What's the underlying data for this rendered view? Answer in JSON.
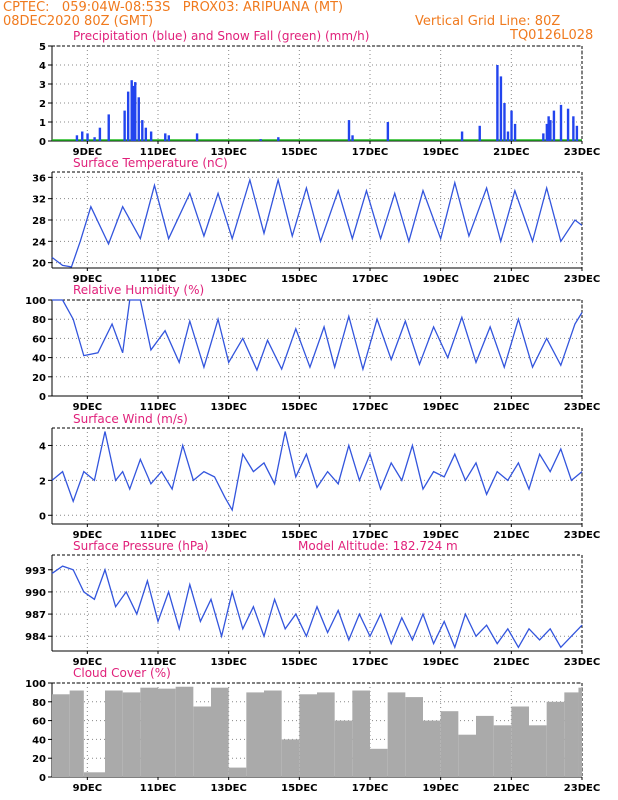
{
  "header": {
    "line1_left": "CPTEC:   059:04W-08:53S   PROX03: ARIPUANA (MT)",
    "line2_left": "08DEC2020 80Z (GMT)",
    "line2_right": "Vertical Grid Line: 80Z",
    "line3_right": "TQ0126L028"
  },
  "x_tick_labels": [
    "9DEC",
    "11DEC",
    "13DEC",
    "15DEC",
    "17DEC",
    "19DEC",
    "21DEC",
    "23DEC"
  ],
  "colors": {
    "series": "#3355dd",
    "bars": "#2244ee",
    "snow": "#22bb22",
    "cloud": "#aaaaaa",
    "title": "#e0207a",
    "header": "#f07a1e"
  },
  "chart_data": [
    {
      "type": "bar",
      "title": "Precipitation (blue) and Snow Fall (green) (mm/h)",
      "ylim": [
        0,
        5
      ],
      "yticks": [
        "0",
        "1",
        "2",
        "3",
        "4",
        "5"
      ],
      "x_range": [
        "08DEC2020 00Z",
        "23DEC2020 00Z"
      ],
      "series": [
        {
          "name": "Precipitation",
          "x_day": [
            0.7,
            0.85,
            1.0,
            1.2,
            1.35,
            1.6,
            2.05,
            2.15,
            2.25,
            2.3,
            2.35,
            2.45,
            2.55,
            2.65,
            2.8,
            3.2,
            3.3,
            4.1,
            5.9,
            6.4,
            8.4,
            8.5,
            9.5,
            11.6,
            12.1,
            12.6,
            12.7,
            12.8,
            12.9,
            13.0,
            13.1,
            13.9,
            14.0,
            14.05,
            14.1,
            14.2,
            14.4,
            14.6,
            14.75,
            14.85
          ],
          "values": [
            0.3,
            0.5,
            0.4,
            0.2,
            0.7,
            1.4,
            1.6,
            2.6,
            3.2,
            2.9,
            3.1,
            2.3,
            1.1,
            0.7,
            0.5,
            0.4,
            0.3,
            0.4,
            0.1,
            0.2,
            1.1,
            0.3,
            1.0,
            0.5,
            0.8,
            4.0,
            3.4,
            2.0,
            0.5,
            1.6,
            0.9,
            0.4,
            0.9,
            1.3,
            1.1,
            1.6,
            1.9,
            1.7,
            1.3,
            0.8
          ]
        },
        {
          "name": "Snow Fall",
          "x_day": [],
          "values": []
        }
      ]
    },
    {
      "type": "line",
      "title": "Surface Temperature (nC)",
      "ylim": [
        19,
        37
      ],
      "yticks": [
        "20",
        "24",
        "28",
        "32",
        "36"
      ],
      "x_day": [
        0,
        0.3,
        0.55,
        0.8,
        1.1,
        1.6,
        2.0,
        2.5,
        2.9,
        3.3,
        3.9,
        4.3,
        4.7,
        5.1,
        5.6,
        6.0,
        6.4,
        6.8,
        7.2,
        7.6,
        8.1,
        8.5,
        8.9,
        9.3,
        9.7,
        10.1,
        10.5,
        11.0,
        11.4,
        11.8,
        12.3,
        12.7,
        13.1,
        13.6,
        14.0,
        14.4,
        14.8,
        15.0
      ],
      "values": [
        21,
        19.5,
        19.2,
        24,
        30.5,
        23.5,
        30.5,
        24.5,
        34.5,
        24.5,
        33,
        25,
        33,
        24.5,
        35.5,
        25.5,
        35.5,
        25,
        34,
        24,
        33.5,
        24.5,
        33.5,
        24.5,
        33,
        24,
        33.5,
        24.5,
        35,
        25,
        34,
        24,
        33.5,
        24,
        34,
        24,
        28,
        27
      ]
    },
    {
      "type": "line",
      "title": "Relative Humidity (%)",
      "ylim": [
        0,
        100
      ],
      "yticks": [
        "0",
        "20",
        "40",
        "60",
        "80",
        "100"
      ],
      "x_day": [
        0,
        0.3,
        0.6,
        0.9,
        1.3,
        1.7,
        2.0,
        2.2,
        2.5,
        2.8,
        3.2,
        3.6,
        3.9,
        4.3,
        4.7,
        5.0,
        5.4,
        5.8,
        6.1,
        6.5,
        6.9,
        7.3,
        7.7,
        8.0,
        8.4,
        8.8,
        9.2,
        9.6,
        10.0,
        10.4,
        10.8,
        11.2,
        11.6,
        12.0,
        12.4,
        12.8,
        13.2,
        13.6,
        14.0,
        14.4,
        14.8,
        15.0
      ],
      "values": [
        100,
        100,
        80,
        42,
        45,
        75,
        45,
        100,
        100,
        48,
        68,
        35,
        78,
        30,
        80,
        35,
        60,
        27,
        58,
        28,
        70,
        30,
        72,
        30,
        83,
        28,
        80,
        38,
        78,
        33,
        72,
        40,
        82,
        35,
        72,
        30,
        80,
        30,
        60,
        32,
        75,
        87
      ]
    },
    {
      "type": "line",
      "title": "Surface Wind (m/s)",
      "ylim": [
        -0.5,
        5
      ],
      "yticks": [
        "0",
        "2",
        "4"
      ],
      "x_day": [
        0,
        0.3,
        0.6,
        0.9,
        1.2,
        1.5,
        1.8,
        2.0,
        2.2,
        2.5,
        2.8,
        3.1,
        3.4,
        3.7,
        4.0,
        4.3,
        4.6,
        4.9,
        5.1,
        5.4,
        5.7,
        6.0,
        6.3,
        6.6,
        6.9,
        7.2,
        7.5,
        7.8,
        8.1,
        8.4,
        8.7,
        9.0,
        9.3,
        9.6,
        9.9,
        10.2,
        10.5,
        10.8,
        11.1,
        11.4,
        11.7,
        12.0,
        12.3,
        12.6,
        12.9,
        13.2,
        13.5,
        13.8,
        14.1,
        14.4,
        14.7,
        15.0
      ],
      "values": [
        2,
        2.5,
        0.8,
        2.5,
        2,
        4.8,
        2,
        2.5,
        1.5,
        3.2,
        1.8,
        2.5,
        1.5,
        4,
        2,
        2.5,
        2.2,
        1,
        0.3,
        3.5,
        2.5,
        3,
        1.8,
        4.8,
        2.2,
        3.5,
        1.6,
        2.5,
        1.8,
        4,
        2,
        3.5,
        1.5,
        3,
        2,
        4,
        1.5,
        2.5,
        2.2,
        3.5,
        2,
        3,
        1.2,
        2.5,
        2,
        3,
        1.5,
        3.5,
        2.5,
        3.8,
        2,
        2.5
      ]
    },
    {
      "type": "line",
      "title": "Surface Pressure (hPa)",
      "annotation": "Model Altitude: 182.724 m",
      "ylim": [
        982,
        995
      ],
      "yticks": [
        "984",
        "987",
        "990",
        "993"
      ],
      "x_day": [
        0,
        0.3,
        0.6,
        0.9,
        1.2,
        1.5,
        1.8,
        2.1,
        2.4,
        2.7,
        3.0,
        3.3,
        3.6,
        3.9,
        4.2,
        4.5,
        4.8,
        5.1,
        5.4,
        5.7,
        6.0,
        6.3,
        6.6,
        6.9,
        7.2,
        7.5,
        7.8,
        8.1,
        8.4,
        8.7,
        9.0,
        9.3,
        9.6,
        9.9,
        10.2,
        10.5,
        10.8,
        11.1,
        11.4,
        11.7,
        12.0,
        12.3,
        12.6,
        12.9,
        13.2,
        13.5,
        13.8,
        14.1,
        14.4,
        14.7,
        15.0
      ],
      "values": [
        992.5,
        993.5,
        993,
        990,
        989,
        993,
        988,
        990,
        987,
        991.5,
        986,
        990,
        985,
        991,
        986,
        989,
        984,
        990,
        985,
        988,
        984,
        989,
        985,
        987,
        984,
        988,
        984.5,
        987.5,
        983.5,
        987,
        984,
        987,
        983,
        986.5,
        983.5,
        987,
        983,
        986,
        982.5,
        987,
        984,
        985.5,
        983,
        985,
        982.5,
        985,
        983.5,
        985,
        982.5,
        984,
        985.5
      ]
    },
    {
      "type": "bar",
      "title": "Cloud Cover (%)",
      "ylim": [
        0,
        100
      ],
      "yticks": [
        "0",
        "20",
        "40",
        "60",
        "80",
        "100"
      ],
      "x_day": [
        0,
        0.5,
        0.9,
        1.5,
        2.0,
        2.5,
        3.0,
        3.5,
        4.0,
        4.5,
        5.0,
        5.5,
        6.0,
        6.5,
        7.0,
        7.5,
        8.0,
        8.5,
        9.0,
        9.5,
        10.0,
        10.5,
        11.0,
        11.5,
        12.0,
        12.5,
        13.0,
        13.5,
        14.0,
        14.5,
        14.9
      ],
      "values": [
        88,
        92,
        5,
        92,
        90,
        95,
        94,
        96,
        75,
        95,
        10,
        90,
        92,
        40,
        88,
        90,
        60,
        92,
        30,
        90,
        85,
        60,
        70,
        45,
        65,
        55,
        75,
        55,
        80,
        90,
        95
      ]
    }
  ]
}
